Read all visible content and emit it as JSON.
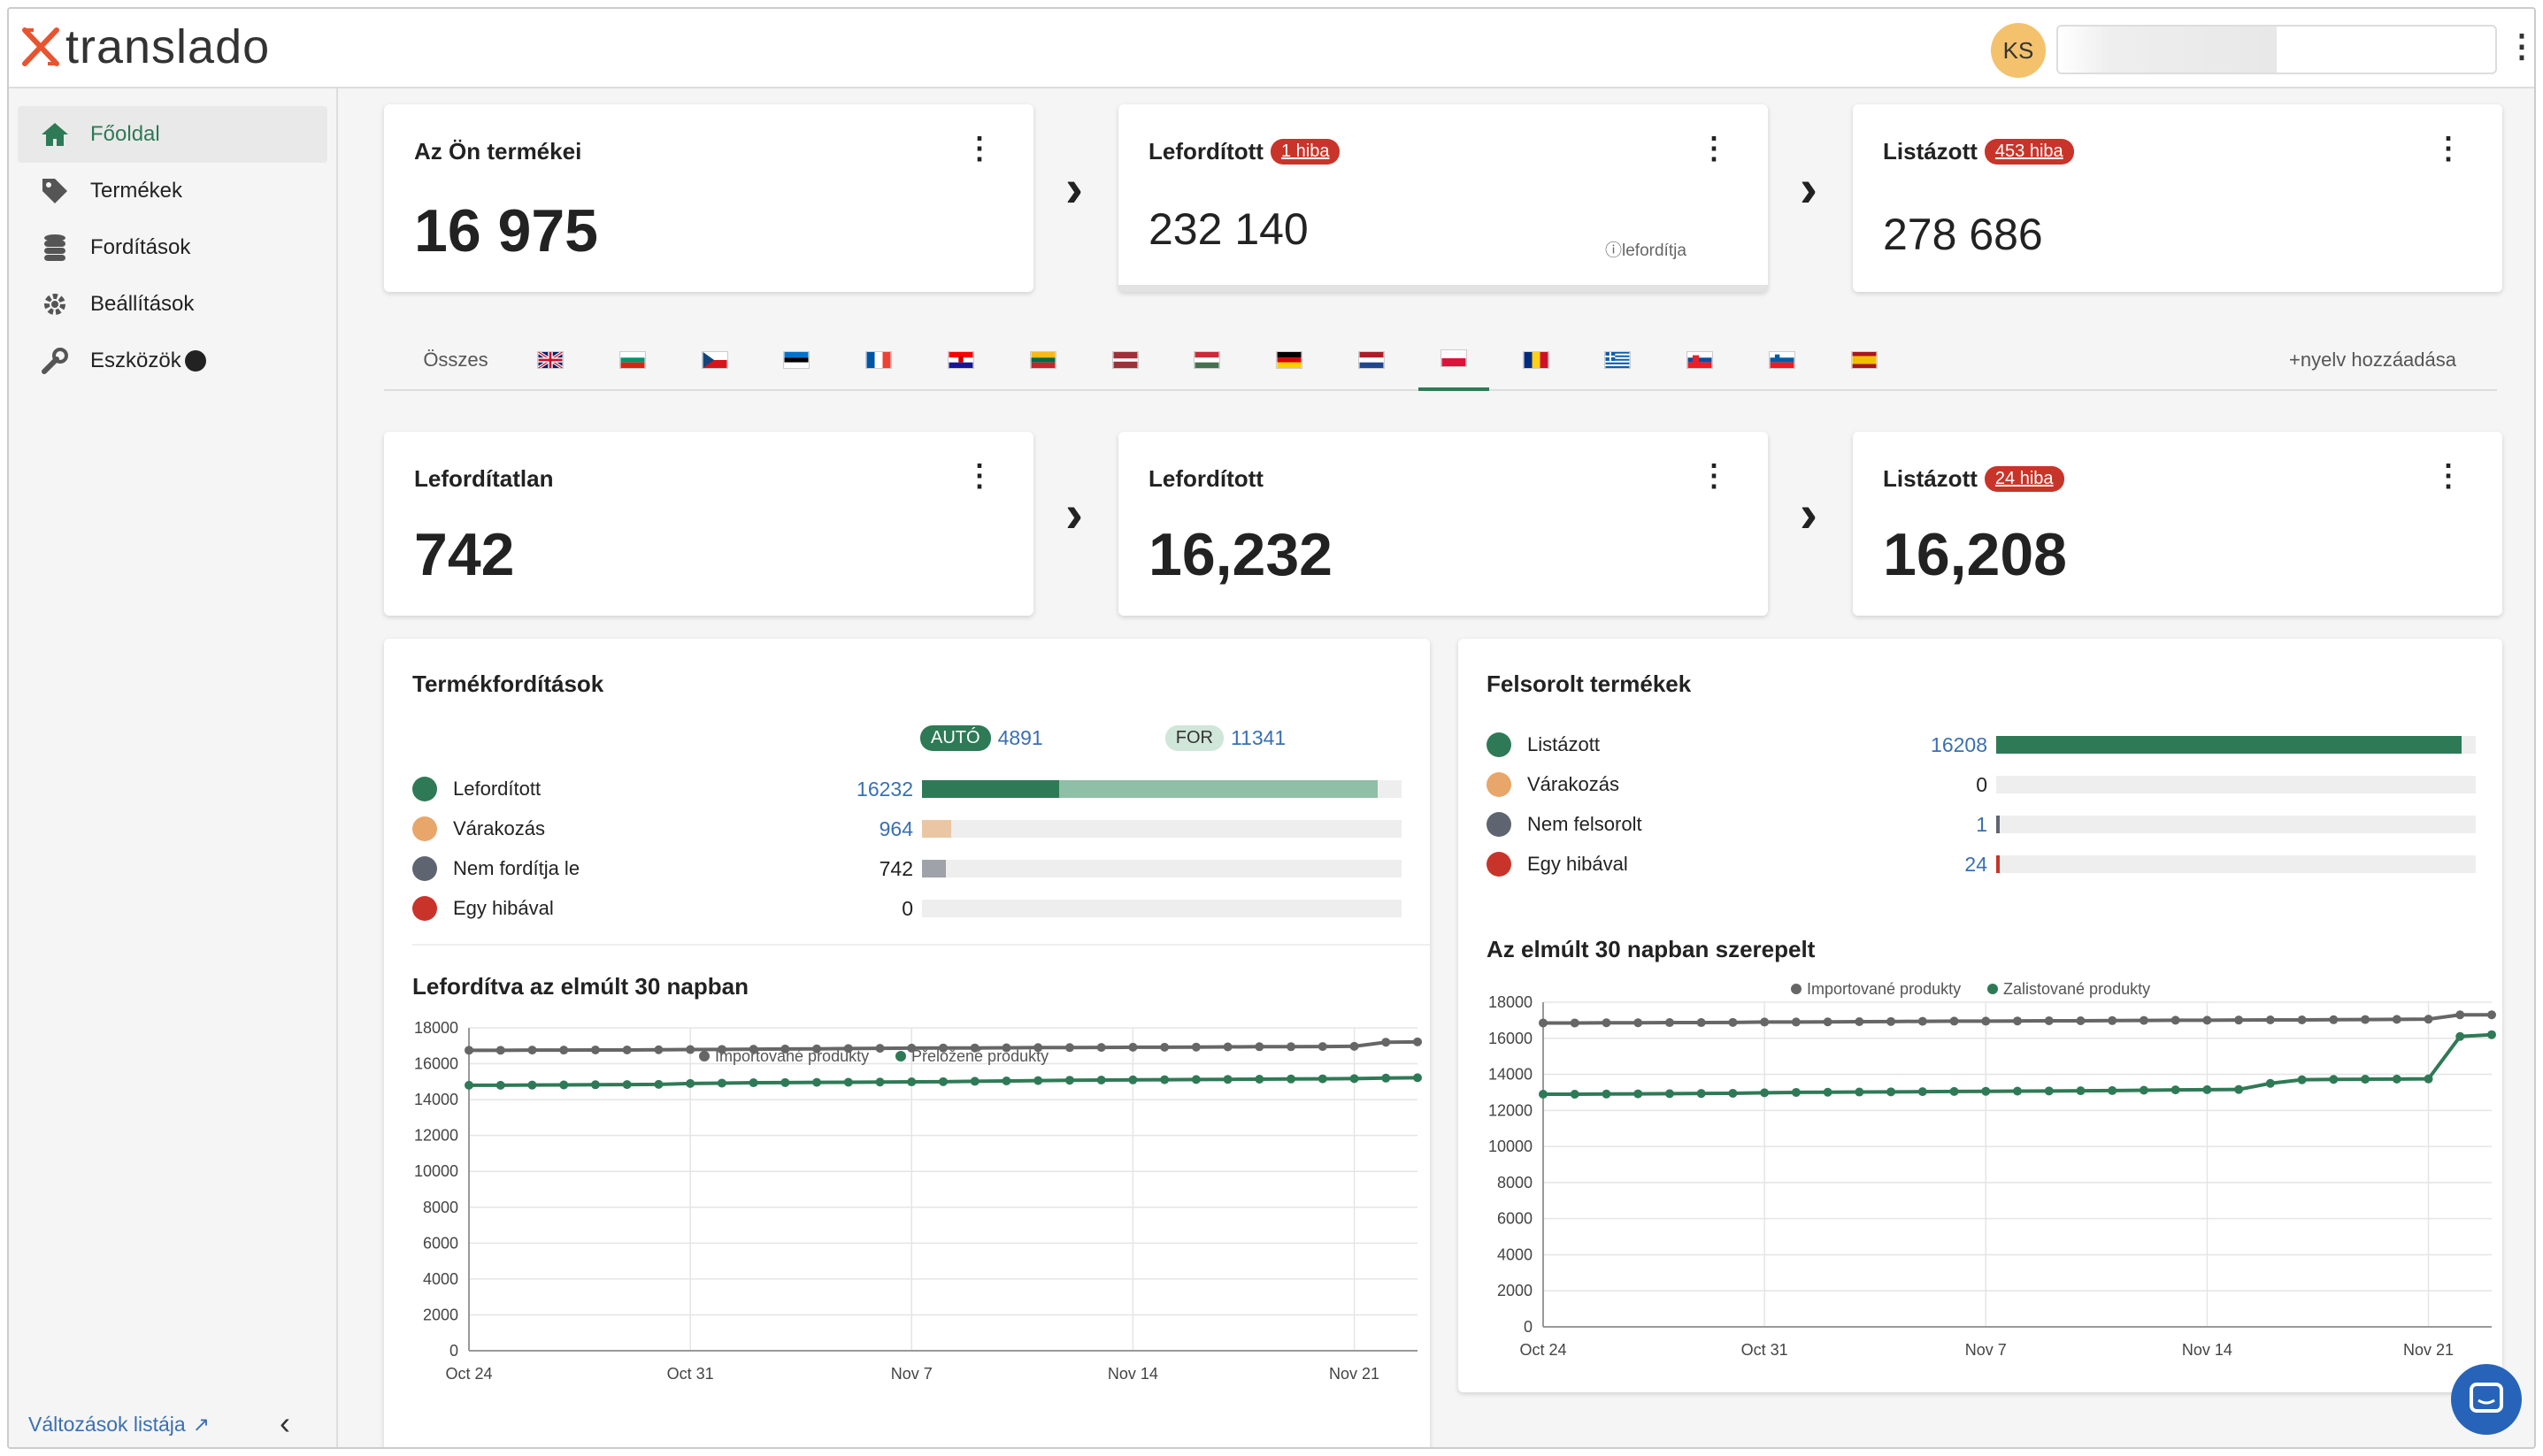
{
  "app": {
    "logo": "translado",
    "avatar_initials": "KS"
  },
  "sidebar": {
    "items": [
      {
        "label": "Főoldal",
        "icon": "home-icon",
        "active": true
      },
      {
        "label": "Termékek",
        "icon": "tag-icon"
      },
      {
        "label": "Fordítások",
        "icon": "database-icon"
      },
      {
        "label": "Beállítások",
        "icon": "gear-icon"
      },
      {
        "label": "Eszközök",
        "icon": "wrench-icon"
      }
    ],
    "changes_link": "Változások listája"
  },
  "top_cards": [
    {
      "title": "Az Ön termékei",
      "value": "16 975"
    },
    {
      "title": "Lefordított",
      "badge": "1 hiba",
      "value": "232 140",
      "note": "lefordítja"
    },
    {
      "title": "Listázott",
      "badge": "453 hiba",
      "value": "278 686"
    }
  ],
  "language_tabs": {
    "all_label": "Összes",
    "flags": [
      "gb",
      "bg",
      "cz",
      "ee",
      "fr",
      "hr",
      "lt",
      "lv",
      "hu",
      "de",
      "nl",
      "pl",
      "ro",
      "gr",
      "sk",
      "si",
      "es"
    ],
    "active": "pl",
    "add_label": "nyelv hozzáadása"
  },
  "lang_cards": [
    {
      "title": "Lefordítatlan",
      "value": "742"
    },
    {
      "title": "Lefordított",
      "value": "16,232"
    },
    {
      "title": "Listázott",
      "badge": "24 hiba",
      "value": "16,208"
    }
  ],
  "translations_panel": {
    "title": "Termékfordítások",
    "auto_label": "AUTÓ",
    "auto_value": "4891",
    "for_label": "FOR",
    "for_value": "11341",
    "rows": [
      {
        "label": "Lefordított",
        "value": "16232",
        "color": "#2f7a56",
        "fill": 1.0
      },
      {
        "label": "Várakozás",
        "value": "964",
        "color": "#e8a66a",
        "fill": 0.06
      },
      {
        "label": "Nem fordítja le",
        "value": "742",
        "color": "#5f6570",
        "fill": 0.05
      },
      {
        "label": "Egy hibával",
        "value": "0",
        "color": "#c9342a",
        "fill": 0
      }
    ],
    "chart_title": "Lefordítva az elmúlt 30 napban"
  },
  "listed_panel": {
    "title": "Felsorolt termékek",
    "rows": [
      {
        "label": "Listázott",
        "value": "16208",
        "color": "#2f7a56",
        "fill": 0.97
      },
      {
        "label": "Várakozás",
        "value": "0",
        "color": "#e8a66a",
        "fill": 0
      },
      {
        "label": "Nem felsorolt",
        "value": "1",
        "color": "#5f6570",
        "fill": 0.005
      },
      {
        "label": "Egy hibával",
        "value": "24",
        "color": "#c9342a",
        "fill": 0.005
      }
    ],
    "chart_title": "Az elmúlt 30 napban szerepelt"
  },
  "chart_data": [
    {
      "type": "line",
      "title": "Lefordítva az elmúlt 30 napban",
      "x_ticks": [
        "Oct 24",
        "Oct 31",
        "Nov 7",
        "Nov 14",
        "Nov 21"
      ],
      "ylim": [
        0,
        18000
      ],
      "y_ticks": [
        0,
        2000,
        4000,
        6000,
        8000,
        10000,
        12000,
        14000,
        16000,
        18000
      ],
      "series": [
        {
          "name": "Importované produkty",
          "color": "#666",
          "values": [
            16750,
            16750,
            16760,
            16760,
            16770,
            16770,
            16780,
            16790,
            16800,
            16810,
            16820,
            16830,
            16850,
            16860,
            16870,
            16880,
            16880,
            16890,
            16900,
            16900,
            16910,
            16920,
            16920,
            16930,
            16940,
            16950,
            16950,
            16960,
            16970,
            17200,
            17220
          ]
        },
        {
          "name": "Přeložené produkty",
          "color": "#2f7a56",
          "values": [
            14800,
            14800,
            14810,
            14820,
            14830,
            14840,
            14850,
            14900,
            14920,
            14940,
            14950,
            14960,
            14970,
            14980,
            14990,
            15000,
            15020,
            15040,
            15060,
            15080,
            15090,
            15100,
            15110,
            15120,
            15130,
            15140,
            15150,
            15160,
            15170,
            15200,
            15220
          ]
        }
      ]
    },
    {
      "type": "line",
      "title": "Az elmúlt 30 napban szerepelt",
      "x_ticks": [
        "Oct 24",
        "Oct 31",
        "Nov 7",
        "Nov 14",
        "Nov 21"
      ],
      "ylim": [
        0,
        18000
      ],
      "y_ticks": [
        0,
        2000,
        4000,
        6000,
        8000,
        10000,
        12000,
        14000,
        16000,
        18000
      ],
      "series": [
        {
          "name": "Importované produkty",
          "color": "#666",
          "values": [
            16850,
            16850,
            16860,
            16860,
            16870,
            16870,
            16880,
            16900,
            16900,
            16910,
            16920,
            16930,
            16940,
            16950,
            16950,
            16960,
            16970,
            16970,
            16980,
            16990,
            17000,
            17000,
            17010,
            17020,
            17020,
            17030,
            17040,
            17050,
            17060,
            17300,
            17300
          ]
        },
        {
          "name": "Zalistované produkty",
          "color": "#2f7a56",
          "values": [
            12900,
            12900,
            12910,
            12920,
            12930,
            12940,
            12950,
            12980,
            13000,
            13010,
            13020,
            13030,
            13040,
            13050,
            13060,
            13070,
            13080,
            13090,
            13100,
            13120,
            13140,
            13150,
            13160,
            13500,
            13700,
            13720,
            13730,
            13740,
            13750,
            16100,
            16200
          ]
        }
      ]
    }
  ]
}
